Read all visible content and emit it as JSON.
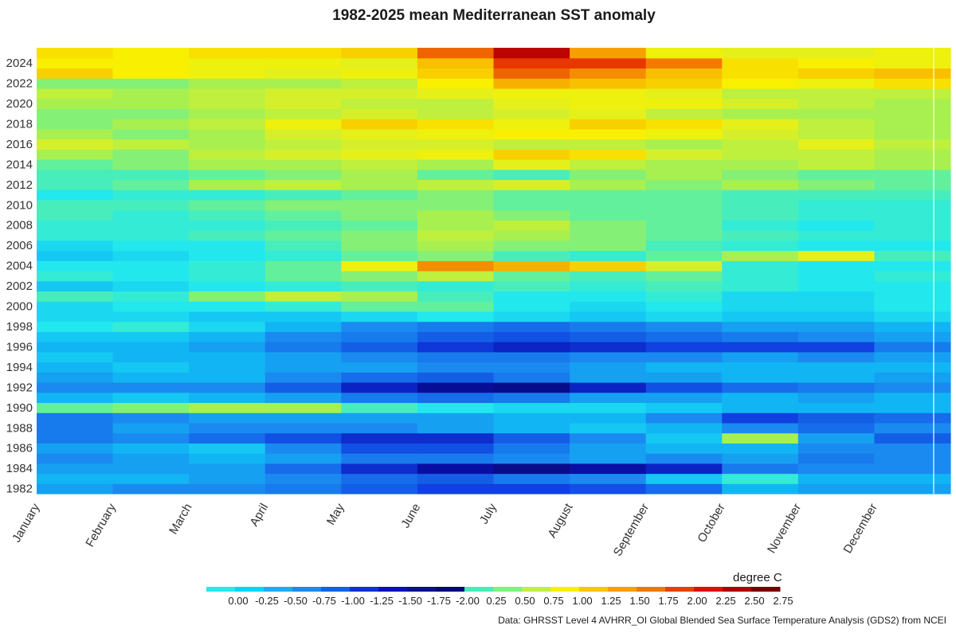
{
  "chart_data": {
    "type": "heatmap",
    "title": "1982-2025 mean Mediterranean SST anomaly",
    "xlabel": "",
    "ylabel": "",
    "x_tick_labels": [
      "January",
      "February",
      "March",
      "April",
      "May",
      "June",
      "July",
      "August",
      "September",
      "October",
      "November",
      "December"
    ],
    "y_tick_labels": [
      "1982",
      "1984",
      "1986",
      "1988",
      "1990",
      "1992",
      "1994",
      "1996",
      "1998",
      "2000",
      "2002",
      "2004",
      "2006",
      "2008",
      "2010",
      "2012",
      "2014",
      "2016",
      "2018",
      "2020",
      "2022",
      "2024"
    ],
    "years": [
      1982,
      1983,
      1984,
      1985,
      1986,
      1987,
      1988,
      1989,
      1990,
      1991,
      1992,
      1993,
      1994,
      1995,
      1996,
      1997,
      1998,
      1999,
      2000,
      2001,
      2002,
      2003,
      2004,
      2005,
      2006,
      2007,
      2008,
      2009,
      2010,
      2011,
      2012,
      2013,
      2014,
      2015,
      2016,
      2017,
      2018,
      2019,
      2020,
      2021,
      2022,
      2023,
      2024,
      2025
    ],
    "months": [
      "Jan",
      "Feb",
      "Mar",
      "Apr",
      "May",
      "Jun",
      "Jul",
      "Aug",
      "Sep",
      "Oct",
      "Nov",
      "Dec"
    ],
    "approx_monthly_anomaly_degC": [
      [
        -0.4,
        -0.5,
        -0.5,
        -0.6,
        -0.8,
        -1.0,
        -1.0,
        -0.9,
        -0.7,
        -0.3,
        -0.4,
        -0.4
      ],
      [
        -0.3,
        -0.3,
        -0.4,
        -0.5,
        -0.7,
        -0.8,
        -0.6,
        -0.5,
        -0.2,
        0.1,
        -0.3,
        -0.3
      ],
      [
        -0.4,
        -0.4,
        -0.4,
        -0.7,
        -1.2,
        -1.6,
        -1.8,
        -1.6,
        -1.3,
        -0.6,
        -0.5,
        -0.5
      ],
      [
        -0.5,
        -0.4,
        -0.3,
        -0.4,
        -0.6,
        -0.6,
        -0.5,
        -0.4,
        -0.5,
        -0.4,
        -0.6,
        -0.5
      ],
      [
        -0.4,
        -0.3,
        -0.2,
        -0.5,
        -0.9,
        -0.9,
        -0.6,
        -0.4,
        -0.3,
        -0.3,
        -0.5,
        -0.5
      ],
      [
        -0.6,
        -0.5,
        -0.7,
        -0.9,
        -1.2,
        -1.2,
        -0.8,
        -0.5,
        -0.2,
        0.5,
        -0.4,
        -0.8
      ],
      [
        -0.6,
        -0.4,
        -0.5,
        -0.5,
        -0.5,
        -0.4,
        -0.3,
        -0.2,
        -0.3,
        -0.5,
        -0.7,
        -0.5
      ],
      [
        -0.6,
        -0.5,
        -0.4,
        -0.4,
        -0.4,
        -0.4,
        -0.3,
        -0.3,
        -0.5,
        -1.0,
        -0.8,
        -0.7
      ],
      [
        0.3,
        0.4,
        0.5,
        0.5,
        0.2,
        0.0,
        -0.1,
        -0.1,
        -0.2,
        -0.3,
        -0.3,
        -0.3
      ],
      [
        -0.3,
        -0.2,
        -0.3,
        -0.4,
        -0.6,
        -0.7,
        -0.6,
        -0.4,
        -0.4,
        -0.3,
        -0.4,
        -0.3
      ],
      [
        -0.5,
        -0.5,
        -0.5,
        -0.8,
        -1.3,
        -1.7,
        -1.8,
        -1.3,
        -0.9,
        -0.7,
        -0.6,
        -0.5
      ],
      [
        -0.4,
        -0.3,
        -0.3,
        -0.5,
        -0.7,
        -0.8,
        -0.6,
        -0.4,
        -0.4,
        -0.3,
        -0.3,
        -0.4
      ],
      [
        -0.3,
        -0.2,
        -0.3,
        -0.4,
        -0.4,
        -0.5,
        -0.5,
        -0.4,
        -0.3,
        -0.3,
        -0.3,
        -0.3
      ],
      [
        -0.2,
        -0.3,
        -0.3,
        -0.4,
        -0.5,
        -0.6,
        -0.6,
        -0.5,
        -0.5,
        -0.4,
        -0.5,
        -0.4
      ],
      [
        -0.3,
        -0.3,
        -0.4,
        -0.6,
        -0.8,
        -1.1,
        -1.3,
        -1.2,
        -1.0,
        -1.0,
        -1.0,
        -0.6
      ],
      [
        -0.2,
        -0.2,
        -0.3,
        -0.5,
        -0.6,
        -0.8,
        -0.9,
        -0.8,
        -0.7,
        -0.6,
        -0.5,
        -0.4
      ],
      [
        0.0,
        0.1,
        -0.1,
        -0.3,
        -0.5,
        -0.6,
        -0.7,
        -0.6,
        -0.5,
        -0.4,
        -0.4,
        -0.3
      ],
      [
        -0.1,
        -0.1,
        -0.2,
        -0.2,
        -0.1,
        0.0,
        -0.1,
        -0.2,
        -0.1,
        -0.2,
        -0.2,
        -0.1
      ],
      [
        -0.1,
        0.0,
        0.0,
        0.1,
        0.3,
        0.3,
        0.0,
        -0.1,
        0.0,
        -0.1,
        -0.1,
        0.0
      ],
      [
        0.2,
        0.1,
        0.4,
        0.6,
        0.5,
        0.2,
        0.0,
        0.0,
        0.1,
        -0.1,
        -0.1,
        0.0
      ],
      [
        -0.2,
        -0.1,
        0.0,
        0.1,
        0.2,
        0.1,
        0.2,
        0.1,
        0.2,
        0.1,
        0.0,
        0.0
      ],
      [
        0.1,
        0.0,
        0.1,
        0.3,
        0.4,
        0.6,
        0.3,
        0.2,
        0.3,
        0.1,
        0.0,
        0.1
      ],
      [
        0.0,
        0.0,
        0.1,
        0.3,
        0.9,
        1.6,
        1.4,
        1.2,
        0.7,
        0.1,
        0.0,
        0.0
      ],
      [
        -0.2,
        -0.1,
        0.0,
        0.1,
        0.3,
        0.4,
        0.2,
        0.1,
        0.3,
        0.5,
        0.8,
        0.2
      ],
      [
        -0.1,
        0.0,
        0.0,
        0.2,
        0.4,
        0.5,
        0.4,
        0.4,
        0.2,
        0.1,
        0.0,
        0.0
      ],
      [
        0.1,
        0.1,
        0.2,
        0.3,
        0.4,
        0.6,
        0.5,
        0.4,
        0.3,
        0.2,
        0.1,
        0.1
      ],
      [
        0.1,
        0.1,
        0.1,
        0.2,
        0.3,
        0.5,
        0.6,
        0.4,
        0.3,
        0.1,
        0.0,
        0.1
      ],
      [
        0.2,
        0.1,
        0.2,
        0.3,
        0.4,
        0.5,
        0.4,
        0.3,
        0.3,
        0.2,
        0.1,
        0.1
      ],
      [
        0.2,
        0.2,
        0.3,
        0.4,
        0.4,
        0.4,
        0.3,
        0.3,
        0.3,
        0.2,
        0.1,
        0.1
      ],
      [
        0.0,
        0.1,
        0.1,
        0.2,
        0.3,
        0.4,
        0.3,
        0.3,
        0.3,
        0.2,
        0.2,
        0.2
      ],
      [
        0.2,
        0.3,
        0.5,
        0.6,
        0.5,
        0.6,
        0.7,
        0.5,
        0.4,
        0.5,
        0.4,
        0.3
      ],
      [
        0.2,
        0.2,
        0.3,
        0.4,
        0.5,
        0.3,
        0.2,
        0.4,
        0.5,
        0.4,
        0.3,
        0.3
      ],
      [
        0.3,
        0.4,
        0.5,
        0.5,
        0.6,
        0.5,
        0.8,
        0.6,
        0.5,
        0.5,
        0.6,
        0.5
      ],
      [
        0.5,
        0.4,
        0.6,
        0.7,
        0.8,
        0.9,
        1.2,
        1.1,
        0.7,
        0.6,
        0.6,
        0.5
      ],
      [
        0.7,
        0.6,
        0.5,
        0.6,
        0.7,
        0.7,
        0.6,
        0.6,
        0.5,
        0.6,
        0.8,
        0.6
      ],
      [
        0.5,
        0.4,
        0.5,
        0.7,
        0.8,
        0.9,
        1.0,
        1.0,
        0.9,
        0.7,
        0.6,
        0.5
      ],
      [
        0.4,
        0.5,
        0.6,
        0.9,
        1.2,
        1.1,
        0.9,
        1.2,
        1.1,
        0.8,
        0.6,
        0.5
      ],
      [
        0.4,
        0.4,
        0.5,
        0.6,
        0.7,
        0.6,
        0.7,
        0.8,
        0.6,
        0.5,
        0.5,
        0.5
      ],
      [
        0.5,
        0.5,
        0.6,
        0.7,
        0.6,
        0.6,
        0.8,
        0.9,
        0.9,
        0.7,
        0.6,
        0.5
      ],
      [
        0.6,
        0.5,
        0.6,
        0.7,
        0.7,
        0.8,
        0.9,
        0.9,
        0.8,
        0.6,
        0.6,
        0.6
      ],
      [
        0.4,
        0.4,
        0.5,
        0.5,
        0.6,
        1.0,
        1.4,
        1.3,
        1.2,
        1.0,
        0.9,
        1.1
      ],
      [
        1.2,
        1.0,
        0.9,
        0.8,
        0.9,
        1.2,
        1.8,
        1.6,
        1.3,
        1.1,
        1.2,
        1.3
      ],
      [
        1.0,
        1.0,
        0.9,
        0.9,
        0.8,
        1.3,
        2.0,
        2.0,
        1.7,
        1.1,
        1.0,
        0.9
      ],
      [
        1.1,
        1.0,
        1.1,
        1.1,
        1.2,
        1.8,
        2.4,
        1.5,
        0.9,
        0.8,
        0.8,
        0.9
      ]
    ],
    "legend": {
      "title": "degree C",
      "labels": [
        "0.00",
        "-0.25",
        "-0.50",
        "-0.75",
        "-1.00",
        "-1.25",
        "-1.50",
        "-1.75",
        "-2.00",
        "0.25",
        "0.50",
        "0.75",
        "1.00",
        "1.25",
        "1.50",
        "1.75",
        "2.00",
        "2.25",
        "2.50",
        "2.75"
      ],
      "colors": [
        "#24eaea",
        "#00d8f0",
        "#18b0f0",
        "#1a8cf0",
        "#1560e8",
        "#1030d8",
        "#0c10c0",
        "#081090",
        "#040870",
        "#40f0b8",
        "#80f080",
        "#c0f040",
        "#f8f000",
        "#f8c800",
        "#f8a000",
        "#f07800",
        "#e84000",
        "#e01000",
        "#b00000",
        "#700000"
      ],
      "position": "bottom"
    },
    "source": "Data: GHRSST Level 4 AVHRR_OI Global Blended Sea Surface Temperature Analysis (GDS2) from NCEI"
  }
}
